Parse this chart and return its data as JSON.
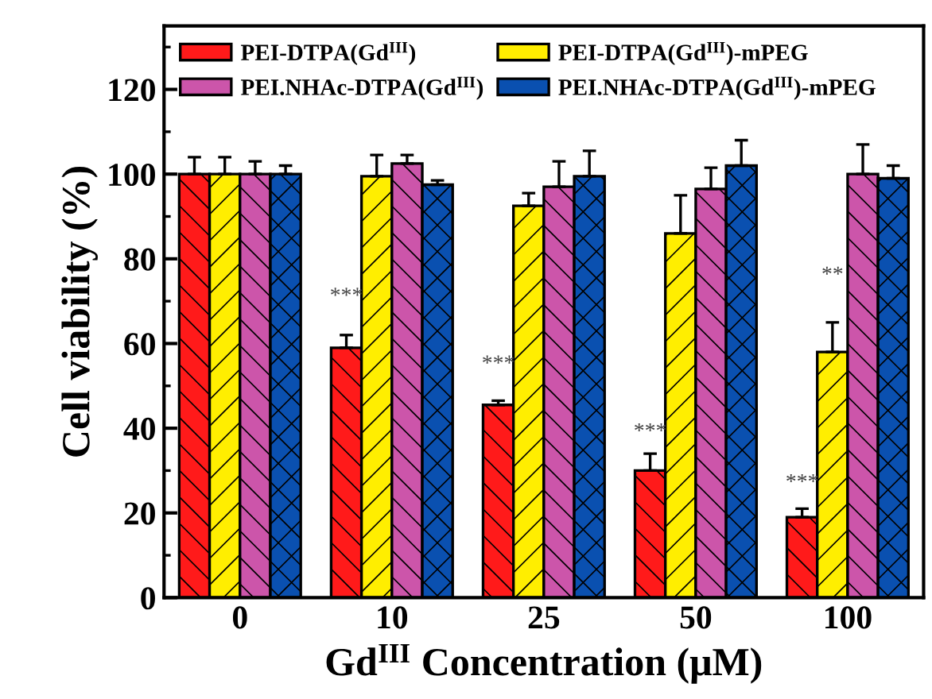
{
  "chart_data": {
    "type": "bar",
    "xlabel": "Gd$^{III}$ Concentration (μM)",
    "ylabel": "Cell viability (%)",
    "categories": [
      "0",
      "10",
      "25",
      "50",
      "100"
    ],
    "series": [
      {
        "name": "PEI-DTPA(Gd$^{III}$)",
        "color": "#ff1a1a",
        "values": [
          100,
          59,
          45.5,
          30,
          19
        ],
        "errors": [
          4,
          3,
          1,
          4,
          2
        ]
      },
      {
        "name": "PEI-DTPA(Gd$^{III}$)-mPEG",
        "color": "#ffee00",
        "values": [
          100,
          99.5,
          92.5,
          86,
          58
        ],
        "errors": [
          4,
          5,
          3,
          9,
          7
        ]
      },
      {
        "name": "PEI.NHAc-DTPA(Gd$^{III}$)",
        "color": "#cc55aa",
        "values": [
          100,
          102.5,
          97,
          96.5,
          100
        ],
        "errors": [
          3,
          2,
          6,
          5,
          7
        ]
      },
      {
        "name": "PEI.NHAc-DTPA(Gd$^{III}$)-mPEG",
        "color": "#0a50b0",
        "values": [
          100,
          97.5,
          99.5,
          102,
          99
        ],
        "errors": [
          2,
          1,
          6,
          6,
          3
        ]
      }
    ],
    "ylim": [
      0,
      135
    ],
    "yticks": [
      0,
      20,
      40,
      60,
      80,
      100,
      120
    ],
    "legend": "top",
    "grid": false,
    "annotations": [
      {
        "text": "***",
        "x": "10",
        "y": 71
      },
      {
        "text": "***",
        "x": "25",
        "y": 55
      },
      {
        "text": "***",
        "x": "50",
        "y": 39
      },
      {
        "text": "***",
        "x": "100",
        "y": 27
      },
      {
        "text": "**",
        "x": "100",
        "y": 76
      }
    ]
  }
}
